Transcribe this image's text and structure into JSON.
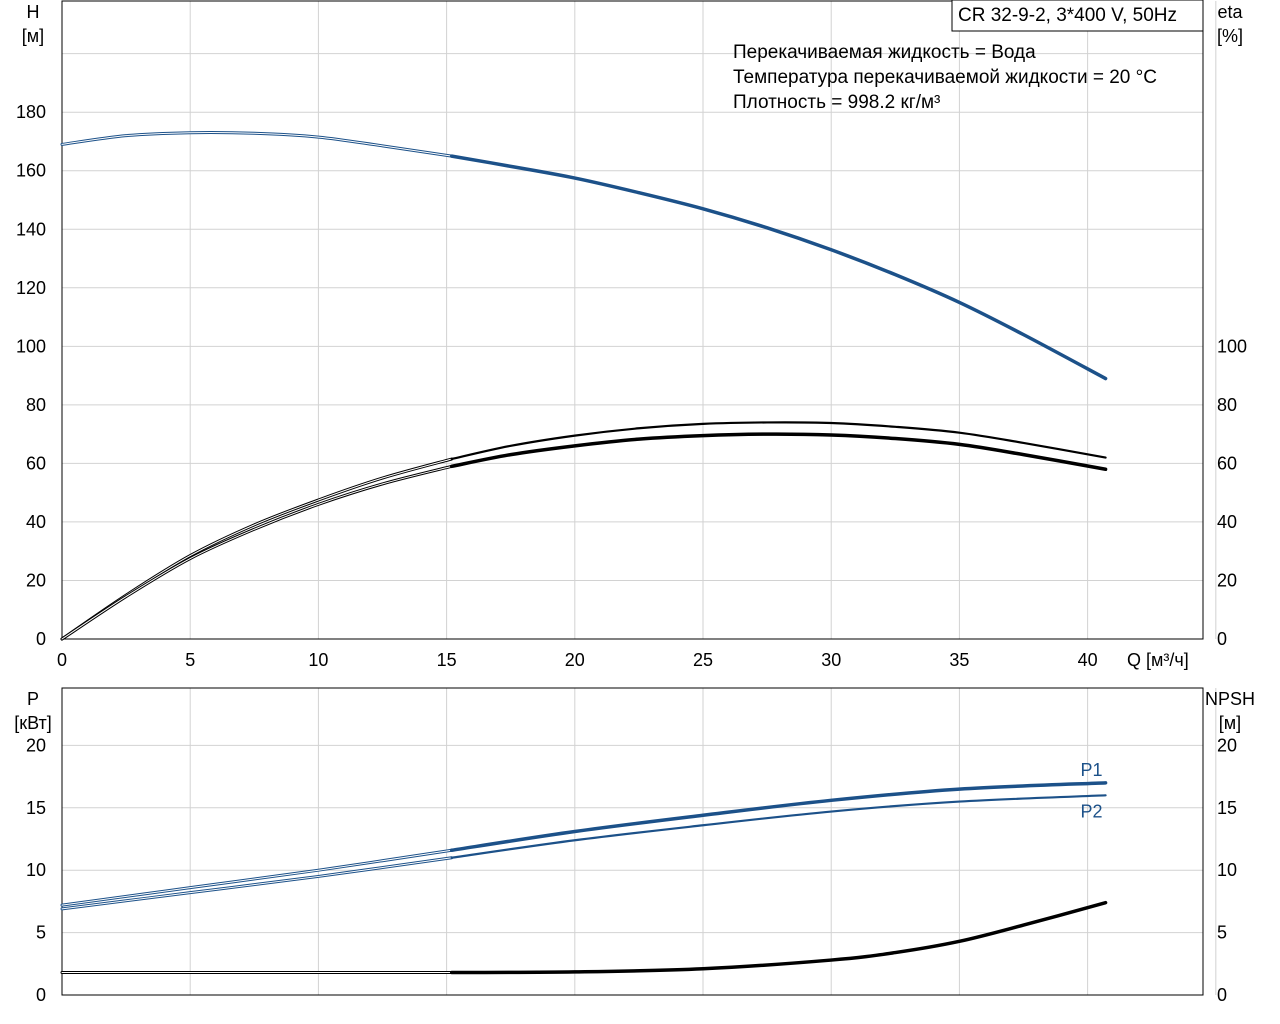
{
  "title": "CR 32-9-2, 3*400 V, 50Hz",
  "info_lines": [
    "Перекачиваемая жидкость = Вода",
    "Температура перекачиваемой жидкости = 20 °C",
    "Плотность = 998.2 кг/м³"
  ],
  "colors": {
    "blue": "#1c5189",
    "black": "#000000",
    "grid": "#d2d2d2"
  },
  "chart_data": [
    {
      "type": "line",
      "name": "head-efficiency",
      "xlabel": "Q [м³/ч]",
      "x_unit_label": "Q [м³/ч]",
      "ylabel_left": {
        "line1": "H",
        "line2": "[м]"
      },
      "ylabel_right": {
        "line1": "eta",
        "line2": "[%]"
      },
      "xlim": [
        0,
        44.5
      ],
      "ylim_left": [
        0,
        218
      ],
      "ylim_right": [
        0,
        218
      ],
      "x_ticks": [
        0,
        5,
        10,
        15,
        20,
        25,
        30,
        35,
        40
      ],
      "y_ticks_left": [
        0,
        20,
        40,
        60,
        80,
        100,
        120,
        140,
        160,
        180
      ],
      "y_ticks_right": [
        0,
        20,
        40,
        60,
        80,
        100
      ],
      "grid": true,
      "duty_range_start": 15.2,
      "series": [
        {
          "name": "H",
          "axis": "left",
          "color": "#1c5189",
          "width": 3.5,
          "x": [
            0,
            2.5,
            5,
            7.5,
            10,
            12.5,
            15.2,
            17.5,
            20,
            22.5,
            25,
            27.5,
            30,
            32.5,
            35,
            37.5,
            40.7
          ],
          "y": [
            169,
            172,
            173,
            172.8,
            171.5,
            168.5,
            165,
            161.5,
            157.5,
            152.5,
            147,
            140.5,
            133,
            124.5,
            115,
            104,
            89
          ]
        },
        {
          "name": "eta",
          "axis": "right",
          "color": "#000000",
          "width": 2.2,
          "x": [
            0,
            2.5,
            5,
            7.5,
            10,
            12.5,
            15.2,
            17.5,
            20,
            22.5,
            25,
            27.5,
            30,
            32.5,
            35,
            37.5,
            40.7
          ],
          "y": [
            0,
            15,
            28.5,
            39,
            47.5,
            55,
            61.5,
            66,
            69.5,
            72,
            73.5,
            74,
            73.8,
            72.5,
            70.5,
            67,
            62
          ]
        },
        {
          "name": "eta-total",
          "axis": "right",
          "color": "#000000",
          "width": 3.5,
          "x": [
            0,
            2.5,
            5,
            7.5,
            10,
            12.5,
            15.2,
            17.5,
            20,
            22.5,
            25,
            27.5,
            30,
            32.5,
            35,
            37.5,
            40.7
          ],
          "y": [
            0,
            14.5,
            27.5,
            37.5,
            46,
            53,
            59,
            63,
            66,
            68.3,
            69.5,
            70,
            69.7,
            68.5,
            66.5,
            63,
            58
          ]
        }
      ]
    },
    {
      "type": "line",
      "name": "power-npsh",
      "ylabel_left": {
        "line1": "P",
        "line2": "[кВт]"
      },
      "ylabel_right": {
        "line1": "NPSH",
        "line2": "[м]"
      },
      "xlim": [
        0,
        44.5
      ],
      "ylim_left": [
        0,
        24.6
      ],
      "ylim_right": [
        0,
        24.6
      ],
      "y_ticks_left": [
        0,
        5,
        10,
        15,
        20
      ],
      "y_ticks_right": [
        0,
        5,
        10,
        15,
        20
      ],
      "grid": true,
      "duty_range_start": 15.2,
      "series": [
        {
          "name": "P1",
          "axis": "left",
          "color": "#1c5189",
          "width": 3.5,
          "label": "P1",
          "label_pos": "above",
          "x": [
            0,
            5,
            10,
            15.2,
            20,
            25,
            30,
            35,
            40.7
          ],
          "y": [
            7.2,
            8.6,
            10,
            11.6,
            13.1,
            14.4,
            15.6,
            16.5,
            17
          ]
        },
        {
          "name": "P2",
          "axis": "left",
          "color": "#1c5189",
          "width": 2.2,
          "label": "P2",
          "label_pos": "below",
          "x": [
            0,
            5,
            10,
            15.2,
            20,
            25,
            30,
            35,
            40.7
          ],
          "y": [
            6.9,
            8.2,
            9.5,
            11,
            12.4,
            13.6,
            14.7,
            15.5,
            16
          ]
        },
        {
          "name": "NPSH",
          "axis": "right",
          "color": "#000000",
          "width": 3.5,
          "x": [
            0,
            5,
            10,
            15.2,
            20,
            25,
            30,
            32.5,
            35,
            37.5,
            40.7
          ],
          "y": [
            1.8,
            1.8,
            1.8,
            1.8,
            1.85,
            2.1,
            2.8,
            3.4,
            4.3,
            5.6,
            7.4
          ]
        }
      ]
    }
  ]
}
